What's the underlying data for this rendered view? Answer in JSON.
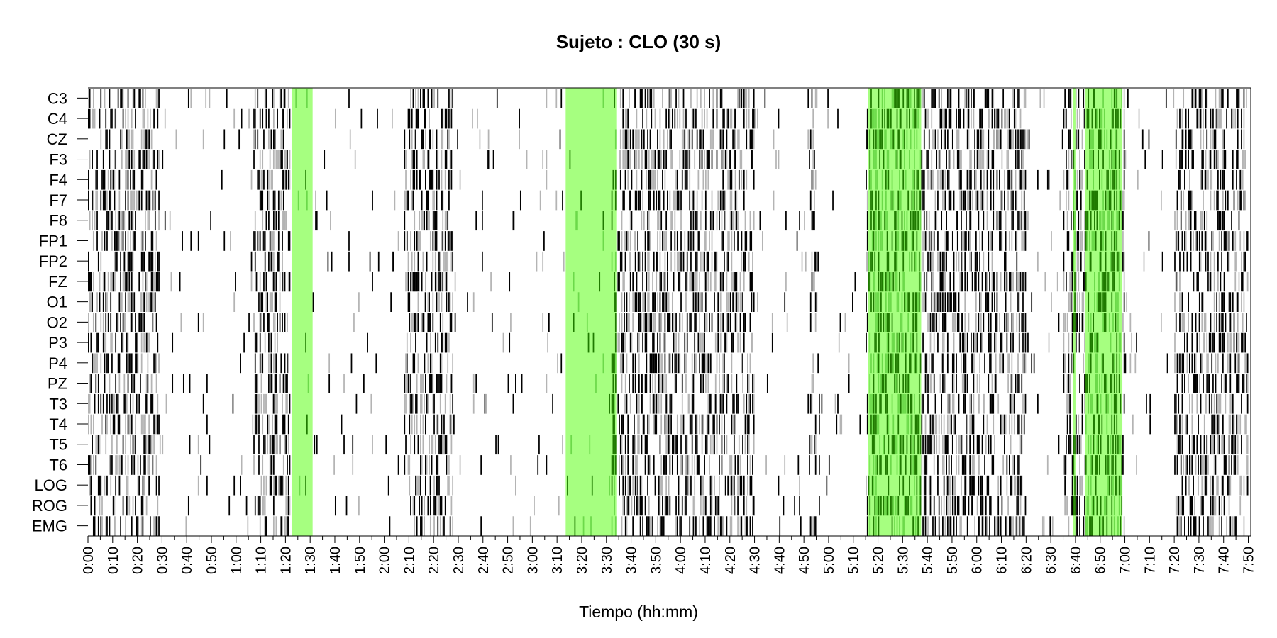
{
  "chart_data": {
    "type": "heatmap",
    "title": "Sujeto : CLO  (30 s)",
    "xlabel": "Tiempo (hh:mm)",
    "ylabel": "",
    "channels": [
      "C3",
      "C4",
      "CZ",
      "F3",
      "F4",
      "F7",
      "F8",
      "FP1",
      "FP2",
      "FZ",
      "O1",
      "O2",
      "P3",
      "P4",
      "PZ",
      "T3",
      "T4",
      "T5",
      "T6",
      "LOG",
      "ROG",
      "EMG"
    ],
    "x_ticks_minutes": [
      0,
      10,
      20,
      30,
      40,
      50,
      60,
      70,
      80,
      90,
      100,
      110,
      120,
      130,
      140,
      150,
      160,
      170,
      180,
      190,
      200,
      210,
      220,
      230,
      240,
      250,
      260,
      270,
      280,
      290,
      300,
      310,
      320,
      330,
      340,
      350,
      360,
      370,
      380,
      390,
      400,
      410,
      420,
      430,
      440,
      450,
      460,
      470
    ],
    "x_tick_labels": [
      "0:00",
      "0:10",
      "0:20",
      "0:30",
      "0:40",
      "0:50",
      "1:00",
      "1:10",
      "1:20",
      "1:30",
      "1:40",
      "1:50",
      "2:00",
      "2:10",
      "2:20",
      "2:30",
      "2:40",
      "2:50",
      "3:00",
      "3:10",
      "3:20",
      "3:30",
      "3:40",
      "3:50",
      "4:00",
      "4:10",
      "4:20",
      "4:30",
      "4:40",
      "4:50",
      "5:00",
      "5:10",
      "5:20",
      "5:30",
      "5:40",
      "5:50",
      "6:00",
      "6:10",
      "6:20",
      "6:30",
      "6:40",
      "6:50",
      "7:00",
      "7:10",
      "7:20",
      "7:30",
      "7:40",
      "7:50"
    ],
    "xlim_minutes": [
      0,
      471
    ],
    "epoch_seconds": 30,
    "highlight_color": "#a6ff80",
    "highlight_intervals_minutes": [
      [
        82.5,
        91
      ],
      [
        193.5,
        214
      ],
      [
        316,
        337.5
      ],
      [
        399,
        400
      ],
      [
        404,
        419
      ]
    ],
    "activity_colors": {
      "strong": "#000000",
      "weak": "#b4b4b4",
      "none": "#ffffff"
    },
    "dense_activity_intervals_minutes": [
      [
        0,
        29
      ],
      [
        67,
        82
      ],
      [
        128,
        148
      ],
      [
        212,
        214
      ],
      [
        215,
        270
      ],
      [
        292,
        295
      ],
      [
        315,
        345
      ],
      [
        345,
        380
      ],
      [
        395,
        420
      ],
      [
        440,
        470
      ]
    ],
    "grid": false
  }
}
